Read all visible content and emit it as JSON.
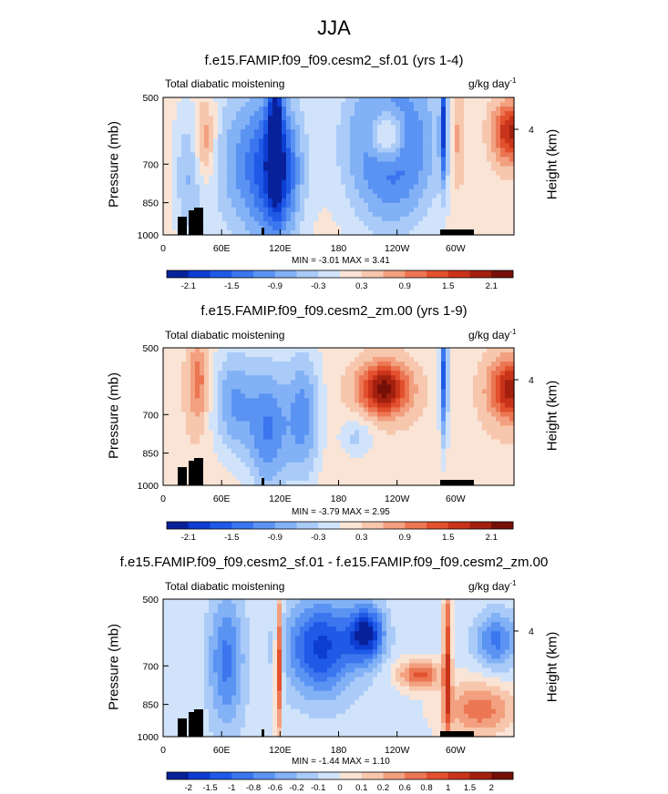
{
  "figure": {
    "title": "JJA"
  },
  "units_label": "g/kg day",
  "units_exponent": "-1",
  "palette": [
    "#08219a",
    "#0d3dd1",
    "#1e5ae6",
    "#3b76ef",
    "#5b93f3",
    "#82b1f6",
    "#aacbf8",
    "#d0e3fb",
    "#f9e4d6",
    "#f7c7ad",
    "#f2a07f",
    "#ec7653",
    "#e2502d",
    "#c8331a",
    "#a3200f",
    "#751008"
  ],
  "chart_data": [
    {
      "type": "heatmap",
      "title": "f.e15.FAMIP.f09_f09.cesm2_sf.01 (yrs 1-4)",
      "subtitle_left": "Total diabatic moistening",
      "ylabel": "Pressure (mb)",
      "y2label": "Height (km)",
      "y_ticks": [
        "500",
        "700",
        "850",
        "1000"
      ],
      "y_tick_values": [
        500,
        700,
        850,
        1000
      ],
      "y2_ticks": [
        "4"
      ],
      "x_ticks": [
        "0",
        "60E",
        "120E",
        "180",
        "120W",
        "60W"
      ],
      "x_tick_values": [
        0,
        60,
        120,
        180,
        240,
        300
      ],
      "xlim": [
        0,
        360
      ],
      "ylim": [
        1000,
        500
      ],
      "min_label": "MIN =  -3.01  MAX =  3.41",
      "colorbar_labels": [
        "-2.1",
        "-1.5",
        "-0.9",
        "-0.3",
        "0.3",
        "0.9",
        "1.5",
        "2.1"
      ]
    },
    {
      "type": "heatmap",
      "title": "f.e15.FAMIP.f09_f09.cesm2_zm.00 (yrs 1-9)",
      "subtitle_left": "Total diabatic moistening",
      "ylabel": "Pressure (mb)",
      "y2label": "Height (km)",
      "y_ticks": [
        "500",
        "700",
        "850",
        "1000"
      ],
      "y_tick_values": [
        500,
        700,
        850,
        1000
      ],
      "y2_ticks": [
        "4"
      ],
      "x_ticks": [
        "0",
        "60E",
        "120E",
        "180",
        "120W",
        "60W"
      ],
      "x_tick_values": [
        0,
        60,
        120,
        180,
        240,
        300
      ],
      "xlim": [
        0,
        360
      ],
      "ylim": [
        1000,
        500
      ],
      "min_label": "MIN =  -3.79  MAX =  2.95",
      "colorbar_labels": [
        "-2.1",
        "-1.5",
        "-0.9",
        "-0.3",
        "0.3",
        "0.9",
        "1.5",
        "2.1"
      ]
    },
    {
      "type": "heatmap",
      "title": "f.e15.FAMIP.f09_f09.cesm2_sf.01 - f.e15.FAMIP.f09_f09.cesm2_zm.00",
      "subtitle_left": "Total diabatic moistening",
      "ylabel": "Pressure (mb)",
      "y2label": "Height (km)",
      "y_ticks": [
        "500",
        "700",
        "850",
        "1000"
      ],
      "y_tick_values": [
        500,
        700,
        850,
        1000
      ],
      "y2_ticks": [
        "4"
      ],
      "x_ticks": [
        "0",
        "60E",
        "120E",
        "180",
        "120W",
        "60W"
      ],
      "x_tick_values": [
        0,
        60,
        120,
        180,
        240,
        300
      ],
      "xlim": [
        0,
        360
      ],
      "ylim": [
        1000,
        500
      ],
      "min_label": "MIN =  -1.44  MAX =  1.10",
      "colorbar_labels": [
        "-2",
        "-1.5",
        "-1",
        "-0.8",
        "-0.6",
        "-0.2",
        "-0.1",
        "0",
        "0.1",
        "0.2",
        "0.6",
        "0.8",
        "1",
        "1.5",
        "2"
      ]
    }
  ]
}
